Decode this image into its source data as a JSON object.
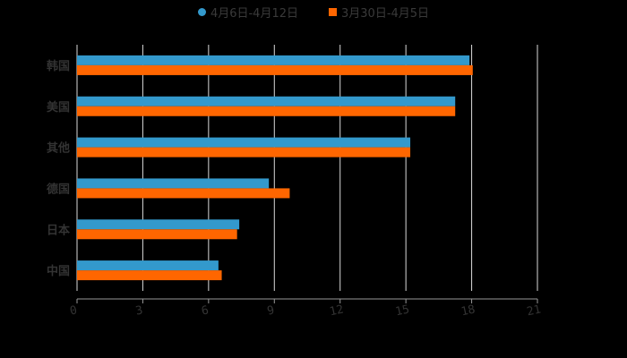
{
  "legend": {
    "series1_label": "4月6日-4月12日",
    "series2_label": "3月30日-4月5日"
  },
  "colors": {
    "series1": "#3399cc",
    "series2": "#ff6600",
    "grid": "#d9d9d9",
    "axis": "#999999",
    "text": "#333333",
    "background": "#000000"
  },
  "chart_data": {
    "type": "bar",
    "orientation": "horizontal",
    "title": "",
    "xlabel": "",
    "ylabel": "",
    "categories": [
      "中国",
      "日本",
      "德国",
      "其他",
      "美国",
      "韩国"
    ],
    "series": [
      {
        "name": "4月6日-4月12日",
        "values": [
          6.45,
          7.4,
          8.75,
          15.2,
          17.25,
          17.9
        ]
      },
      {
        "name": "3月30日-4月5日",
        "values": [
          6.6,
          7.3,
          9.7,
          15.2,
          17.25,
          18.05
        ]
      }
    ],
    "xlim": [
      0,
      21
    ],
    "xticks": [
      0,
      3,
      6,
      9,
      12,
      15,
      18,
      21
    ],
    "grid": true,
    "legend_position": "top"
  }
}
